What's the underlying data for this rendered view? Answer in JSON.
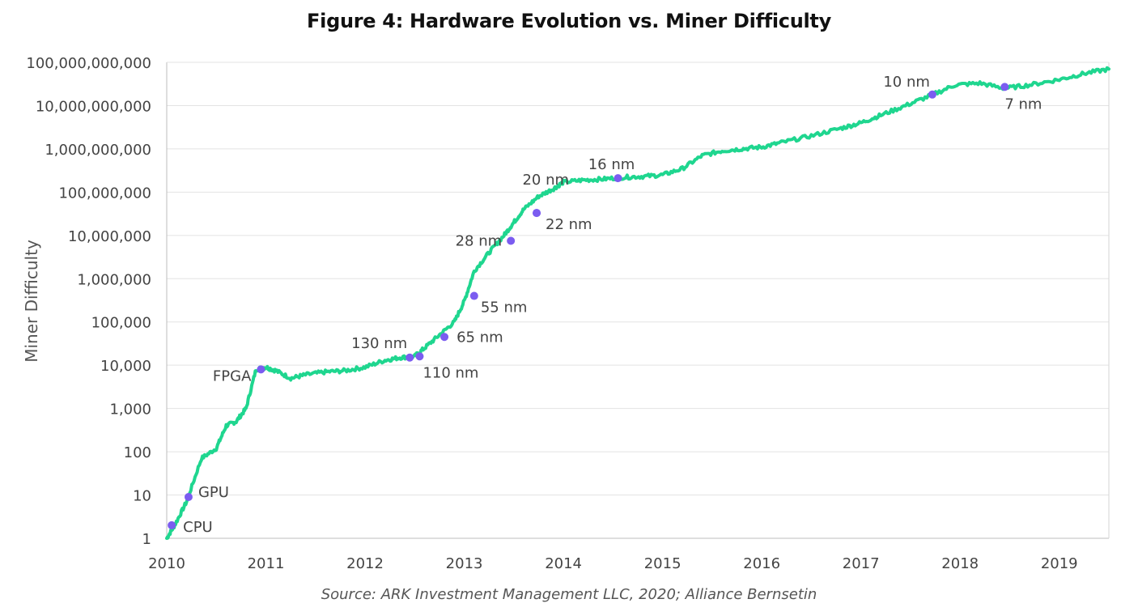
{
  "chart_data": {
    "type": "line",
    "title": "Figure 4: Hardware Evolution vs. Miner Difficulty",
    "xlabel": "",
    "ylabel": "Miner Difficulty",
    "y_scale": "log",
    "ylim": [
      1,
      100000000000
    ],
    "xlim": [
      2010,
      2019.5
    ],
    "grid": "horizontal",
    "x_ticks": [
      "2010",
      "2011",
      "2012",
      "2013",
      "2014",
      "2015",
      "2016",
      "2017",
      "2018",
      "2019"
    ],
    "y_ticks": [
      "1",
      "10",
      "100",
      "1,000",
      "10,000",
      "100,000",
      "1,000,000",
      "10,000,000",
      "100,000,000",
      "1,000,000,000",
      "10,000,000,000",
      "100,000,000,000"
    ],
    "line_color": "#1fd68f",
    "marker_color": "#7b5cf0",
    "series": [
      {
        "x": [
          2010.0,
          2010.08,
          2010.2,
          2010.35,
          2010.5,
          2010.6,
          2010.7,
          2010.8,
          2010.9,
          2011.0,
          2011.1,
          2011.25,
          2011.4,
          2011.6,
          2011.8,
          2012.0,
          2012.2,
          2012.35,
          2012.5,
          2012.6,
          2012.75,
          2012.9,
          2013.0,
          2013.1,
          2013.25,
          2013.4,
          2013.5,
          2013.6,
          2013.75,
          2013.9,
          2014.0,
          2014.2,
          2014.4,
          2014.6,
          2014.8,
          2015.0,
          2015.2,
          2015.4,
          2015.6,
          2015.8,
          2016.0,
          2016.2,
          2016.5,
          2016.8,
          2017.0,
          2017.2,
          2017.45,
          2017.7,
          2017.95,
          2018.2,
          2018.45,
          2018.7,
          2019.0,
          2019.25,
          2019.5
        ],
        "y": [
          1,
          2,
          7,
          70,
          120,
          400,
          500,
          1000,
          8000,
          9000,
          7500,
          5000,
          6000,
          7000,
          7500,
          9000,
          13000,
          15000,
          16000,
          25000,
          50000,
          100000,
          300000,
          1500000,
          4000000,
          10000000,
          20000000,
          40000000,
          80000000,
          120000000,
          170000000,
          190000000,
          200000000,
          220000000,
          230000000,
          250000000,
          350000000,
          700000000,
          900000000,
          1000000000,
          1100000000,
          1400000000,
          2000000000,
          3000000000,
          4000000000,
          6000000000,
          10000000000,
          17000000000,
          30000000000,
          33000000000,
          25000000000,
          30000000000,
          40000000000,
          55000000000,
          70000000000
        ]
      }
    ],
    "markers": [
      {
        "label": "CPU",
        "x": 2010.05,
        "y": 2
      },
      {
        "label": "GPU",
        "x": 2010.22,
        "y": 9
      },
      {
        "label": "FPGA",
        "x": 2010.95,
        "y": 8000
      },
      {
        "label": "130 nm",
        "x": 2012.45,
        "y": 15000
      },
      {
        "label": "110 nm",
        "x": 2012.55,
        "y": 16000
      },
      {
        "label": "65 nm",
        "x": 2012.8,
        "y": 45000
      },
      {
        "label": "55 nm",
        "x": 2013.1,
        "y": 400000
      },
      {
        "label": "28 nm",
        "x": 2013.47,
        "y": 7500000
      },
      {
        "label": "22 nm",
        "x": 2013.73,
        "y": 33000000
      },
      {
        "label": "20 nm",
        "x": 2013.73,
        "y": 33000000
      },
      {
        "label": "16 nm",
        "x": 2014.55,
        "y": 210000000
      },
      {
        "label": "10 nm",
        "x": 2017.72,
        "y": 18000000000
      },
      {
        "label": "7 nm",
        "x": 2018.45,
        "y": 27000000000
      }
    ]
  },
  "footer": {
    "source": "Source: ARK Investment Management LLC, 2020; Alliance Bernsetin"
  }
}
